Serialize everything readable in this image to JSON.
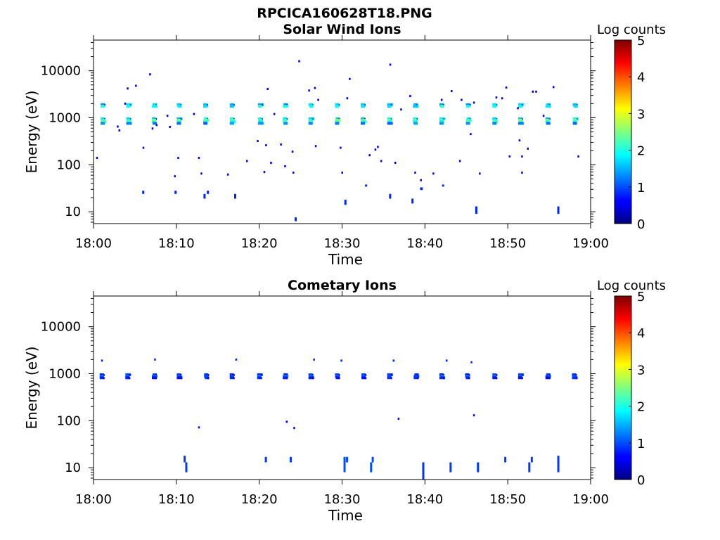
{
  "figure": {
    "title": "RPCICA160628T18.PNG"
  },
  "chart_data": [
    {
      "type": "heatmap",
      "title": "Solar Wind Ions",
      "xlabel": "Time",
      "ylabel": "Energy (eV)",
      "xticks": [
        "18:00",
        "18:10",
        "18:20",
        "18:30",
        "18:40",
        "18:50",
        "19:00"
      ],
      "xlim_minutes": [
        0,
        60
      ],
      "yscale": "log",
      "ylim": [
        5.6,
        45000
      ],
      "yticks": [
        10,
        100,
        1000,
        10000
      ],
      "ytick_labels": [
        "10",
        "100",
        "1000",
        "10000"
      ],
      "colorbar": {
        "label": "Log counts",
        "range": [
          0,
          5
        ],
        "ticks": [
          "0",
          "1",
          "2",
          "3",
          "4",
          "5"
        ],
        "colormap": "jet"
      },
      "sweep_times_minutes": [
        1.1,
        4.2,
        7.3,
        10.3,
        13.5,
        16.7,
        20.1,
        23.1,
        26.2,
        29.4,
        32.5,
        35.7,
        38.8,
        42.0,
        45.2,
        48.4,
        51.5,
        54.8,
        58.1
      ],
      "main_beam": [
        {
          "e": 1900,
          "v": 1.6
        },
        {
          "e": 1750,
          "v": 1.9
        },
        {
          "e": 950,
          "v": 1.8
        },
        {
          "e": 880,
          "v": 2.4
        },
        {
          "e": 820,
          "v": 2.1
        },
        {
          "e": 760,
          "v": 1.3
        }
      ],
      "scatter_points": [
        {
          "t": 0.4,
          "e": 140,
          "v": 0.5
        },
        {
          "t": 2.9,
          "e": 650,
          "v": 0.4
        },
        {
          "t": 3.1,
          "e": 540,
          "v": 0.4
        },
        {
          "t": 3.8,
          "e": 2000,
          "v": 0.5
        },
        {
          "t": 4.1,
          "e": 4200,
          "v": 0.5
        },
        {
          "t": 5.1,
          "e": 4800,
          "v": 0.5
        },
        {
          "t": 6.0,
          "e": 230,
          "v": 0.5
        },
        {
          "t": 6.8,
          "e": 8400,
          "v": 0.6
        },
        {
          "t": 7.1,
          "e": 590,
          "v": 0.4
        },
        {
          "t": 7.6,
          "e": 700,
          "v": 0.4
        },
        {
          "t": 8.9,
          "e": 1100,
          "v": 0.5
        },
        {
          "t": 9.2,
          "e": 640,
          "v": 0.4
        },
        {
          "t": 9.8,
          "e": 57,
          "v": 0.6
        },
        {
          "t": 10.2,
          "e": 140,
          "v": 0.5
        },
        {
          "t": 12.7,
          "e": 140,
          "v": 0.5
        },
        {
          "t": 13.0,
          "e": 65,
          "v": 0.5
        },
        {
          "t": 12.1,
          "e": 1200,
          "v": 0.5
        },
        {
          "t": 16.2,
          "e": 62,
          "v": 0.6
        },
        {
          "t": 18.5,
          "e": 120,
          "v": 0.5
        },
        {
          "t": 19.8,
          "e": 320,
          "v": 0.5
        },
        {
          "t": 20.8,
          "e": 260,
          "v": 0.5
        },
        {
          "t": 21.0,
          "e": 4100,
          "v": 0.5
        },
        {
          "t": 21.8,
          "e": 1200,
          "v": 0.5
        },
        {
          "t": 20.6,
          "e": 70,
          "v": 0.5
        },
        {
          "t": 21.4,
          "e": 110,
          "v": 0.5
        },
        {
          "t": 22.6,
          "e": 270,
          "v": 0.5
        },
        {
          "t": 23.1,
          "e": 93,
          "v": 0.5
        },
        {
          "t": 24.1,
          "e": 68,
          "v": 0.5
        },
        {
          "t": 24.8,
          "e": 16000,
          "v": 0.6
        },
        {
          "t": 24.0,
          "e": 190,
          "v": 0.5
        },
        {
          "t": 26.0,
          "e": 3800,
          "v": 0.5
        },
        {
          "t": 26.7,
          "e": 4300,
          "v": 0.5
        },
        {
          "t": 27.1,
          "e": 2400,
          "v": 0.5
        },
        {
          "t": 26.8,
          "e": 250,
          "v": 0.5
        },
        {
          "t": 29.8,
          "e": 230,
          "v": 0.5
        },
        {
          "t": 30.0,
          "e": 68,
          "v": 0.5
        },
        {
          "t": 30.9,
          "e": 6700,
          "v": 0.5
        },
        {
          "t": 30.6,
          "e": 2600,
          "v": 0.5
        },
        {
          "t": 33.3,
          "e": 160,
          "v": 0.5
        },
        {
          "t": 34.0,
          "e": 210,
          "v": 0.5
        },
        {
          "t": 34.3,
          "e": 240,
          "v": 0.5
        },
        {
          "t": 34.7,
          "e": 120,
          "v": 0.5
        },
        {
          "t": 35.8,
          "e": 13500,
          "v": 0.6
        },
        {
          "t": 36.4,
          "e": 110,
          "v": 0.5
        },
        {
          "t": 37.1,
          "e": 1500,
          "v": 0.5
        },
        {
          "t": 38.2,
          "e": 2900,
          "v": 0.5
        },
        {
          "t": 38.8,
          "e": 68,
          "v": 0.5
        },
        {
          "t": 39.5,
          "e": 47,
          "v": 0.5
        },
        {
          "t": 41.0,
          "e": 65,
          "v": 0.5
        },
        {
          "t": 42.0,
          "e": 2400,
          "v": 0.5
        },
        {
          "t": 43.2,
          "e": 3700,
          "v": 0.5
        },
        {
          "t": 44.4,
          "e": 2400,
          "v": 0.5
        },
        {
          "t": 44.2,
          "e": 120,
          "v": 0.5
        },
        {
          "t": 45.5,
          "e": 450,
          "v": 0.5
        },
        {
          "t": 45.9,
          "e": 2100,
          "v": 0.5
        },
        {
          "t": 46.6,
          "e": 65,
          "v": 0.5
        },
        {
          "t": 48.6,
          "e": 2700,
          "v": 0.5
        },
        {
          "t": 49.3,
          "e": 2600,
          "v": 0.5
        },
        {
          "t": 49.8,
          "e": 4400,
          "v": 0.5
        },
        {
          "t": 50.2,
          "e": 150,
          "v": 0.5
        },
        {
          "t": 51.2,
          "e": 1600,
          "v": 0.5
        },
        {
          "t": 51.4,
          "e": 330,
          "v": 0.5
        },
        {
          "t": 51.7,
          "e": 150,
          "v": 0.5
        },
        {
          "t": 52.4,
          "e": 220,
          "v": 0.5
        },
        {
          "t": 53.0,
          "e": 3600,
          "v": 0.5
        },
        {
          "t": 53.4,
          "e": 3600,
          "v": 0.5
        },
        {
          "t": 54.3,
          "e": 1100,
          "v": 0.5
        },
        {
          "t": 55.5,
          "e": 4500,
          "v": 0.5
        },
        {
          "t": 58.5,
          "e": 150,
          "v": 0.5
        },
        {
          "t": 51.7,
          "e": 68,
          "v": 0.5
        },
        {
          "t": 39.5,
          "e": 31,
          "v": 0.5
        }
      ],
      "low_energy_marks": [
        {
          "t": 6.0,
          "elo": 24,
          "ehi": 28,
          "v": 0.8
        },
        {
          "t": 9.9,
          "elo": 24,
          "ehi": 28,
          "v": 0.8
        },
        {
          "t": 13.4,
          "elo": 19,
          "ehi": 24,
          "v": 0.8
        },
        {
          "t": 13.8,
          "elo": 24,
          "ehi": 28,
          "v": 0.8
        },
        {
          "t": 17.1,
          "elo": 19,
          "ehi": 24,
          "v": 0.8
        },
        {
          "t": 24.4,
          "elo": 6.3,
          "ehi": 7.6,
          "v": 0.8
        },
        {
          "t": 30.4,
          "elo": 14,
          "ehi": 18,
          "v": 0.8
        },
        {
          "t": 32.9,
          "elo": 35,
          "ehi": 38,
          "v": 0.8
        },
        {
          "t": 35.8,
          "elo": 19,
          "ehi": 24,
          "v": 0.8
        },
        {
          "t": 38.5,
          "elo": 15,
          "ehi": 19,
          "v": 0.8
        },
        {
          "t": 39.6,
          "elo": 29,
          "ehi": 33,
          "v": 0.8
        },
        {
          "t": 42.2,
          "elo": 35,
          "ehi": 38,
          "v": 0.8
        },
        {
          "t": 46.2,
          "elo": 9,
          "ehi": 13,
          "v": 0.8
        },
        {
          "t": 56.1,
          "elo": 9,
          "ehi": 13,
          "v": 0.8
        }
      ]
    },
    {
      "type": "heatmap",
      "title": "Cometary Ions",
      "xlabel": "Time",
      "ylabel": "Energy (eV)",
      "xticks": [
        "18:00",
        "18:10",
        "18:20",
        "18:30",
        "18:40",
        "18:50",
        "19:00"
      ],
      "xlim_minutes": [
        0,
        60
      ],
      "yscale": "log",
      "ylim": [
        5.6,
        45000
      ],
      "yticks": [
        10,
        100,
        1000,
        10000
      ],
      "ytick_labels": [
        "10",
        "100",
        "1000",
        "10000"
      ],
      "colorbar": {
        "label": "Log counts",
        "range": [
          0,
          5
        ],
        "ticks": [
          "0",
          "1",
          "2",
          "3",
          "4",
          "5"
        ],
        "colormap": "jet"
      },
      "sweep_times_minutes": [
        1.0,
        4.1,
        7.3,
        10.3,
        13.6,
        16.7,
        20.0,
        23.1,
        26.2,
        29.4,
        32.6,
        35.7,
        38.9,
        42.0,
        45.1,
        48.4,
        51.5,
        54.8,
        58.0
      ],
      "main_beam": [
        {
          "e": 950,
          "v": 0.9
        },
        {
          "e": 880,
          "v": 1.1
        },
        {
          "e": 820,
          "v": 0.8
        }
      ],
      "scatter_points": [
        {
          "t": 1.0,
          "e": 1900,
          "v": 0.8
        },
        {
          "t": 7.4,
          "e": 2000,
          "v": 0.8
        },
        {
          "t": 12.7,
          "e": 72,
          "v": 0.6
        },
        {
          "t": 17.2,
          "e": 2000,
          "v": 0.8
        },
        {
          "t": 23.3,
          "e": 95,
          "v": 0.6
        },
        {
          "t": 24.2,
          "e": 70,
          "v": 0.6
        },
        {
          "t": 26.6,
          "e": 2000,
          "v": 0.8
        },
        {
          "t": 29.9,
          "e": 1900,
          "v": 0.8
        },
        {
          "t": 36.2,
          "e": 1900,
          "v": 0.8
        },
        {
          "t": 36.8,
          "e": 110,
          "v": 0.6
        },
        {
          "t": 42.6,
          "e": 1900,
          "v": 0.8
        },
        {
          "t": 45.6,
          "e": 1750,
          "v": 0.8
        },
        {
          "t": 45.9,
          "e": 130,
          "v": 0.6
        }
      ],
      "low_energy_marks": [
        {
          "t": 11.0,
          "elo": 13,
          "ehi": 18,
          "v": 0.9
        },
        {
          "t": 11.2,
          "elo": 8,
          "ehi": 13,
          "v": 0.9
        },
        {
          "t": 20.8,
          "elo": 13,
          "ehi": 17,
          "v": 0.9
        },
        {
          "t": 23.8,
          "elo": 13,
          "ehi": 17,
          "v": 0.9
        },
        {
          "t": 30.3,
          "elo": 8,
          "ehi": 17,
          "v": 1.0
        },
        {
          "t": 30.6,
          "elo": 13,
          "ehi": 17,
          "v": 1.0
        },
        {
          "t": 33.5,
          "elo": 8,
          "ehi": 13,
          "v": 1.0
        },
        {
          "t": 33.7,
          "elo": 13,
          "ehi": 17,
          "v": 1.0
        },
        {
          "t": 39.8,
          "elo": 5.7,
          "ehi": 13,
          "v": 0.9
        },
        {
          "t": 43.1,
          "elo": 8,
          "ehi": 13,
          "v": 0.9
        },
        {
          "t": 46.4,
          "elo": 8,
          "ehi": 13,
          "v": 0.9
        },
        {
          "t": 49.7,
          "elo": 13,
          "ehi": 17,
          "v": 0.9
        },
        {
          "t": 52.6,
          "elo": 8,
          "ehi": 13,
          "v": 0.9
        },
        {
          "t": 52.9,
          "elo": 13,
          "ehi": 17,
          "v": 0.9
        },
        {
          "t": 56.1,
          "elo": 8,
          "ehi": 18,
          "v": 0.9
        }
      ]
    }
  ]
}
